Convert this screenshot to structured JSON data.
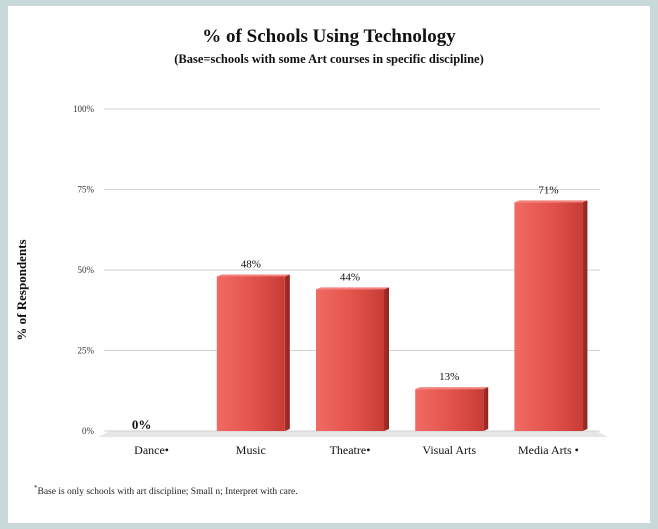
{
  "chart_data": {
    "type": "bar",
    "title": "% of Schools Using Technology",
    "subtitle": "(Base=schools with some Art courses in specific discipline)",
    "xlabel": "",
    "ylabel": "% of Respondents",
    "categories": [
      "Dance",
      "Music",
      "Theatre",
      "Visual Arts",
      "Media Arts"
    ],
    "category_labels": [
      "Dance•",
      "Music",
      "Theatre•",
      "Visual Arts",
      "Media Arts •"
    ],
    "values": [
      0,
      48,
      44,
      13,
      71
    ],
    "data_labels": [
      "0%",
      "48%",
      "44%",
      "13%",
      "71%"
    ],
    "ylim": [
      0,
      100
    ],
    "yticks": [
      0,
      25,
      50,
      75,
      100
    ],
    "ytick_labels": [
      "0%",
      "25%",
      "50%",
      "75%",
      "100%"
    ],
    "grid": true,
    "bar_color": "#e0504a",
    "footnote_marker": "*",
    "footnote": "Base is only schools with art discipline;  Small n; Interpret with care."
  }
}
